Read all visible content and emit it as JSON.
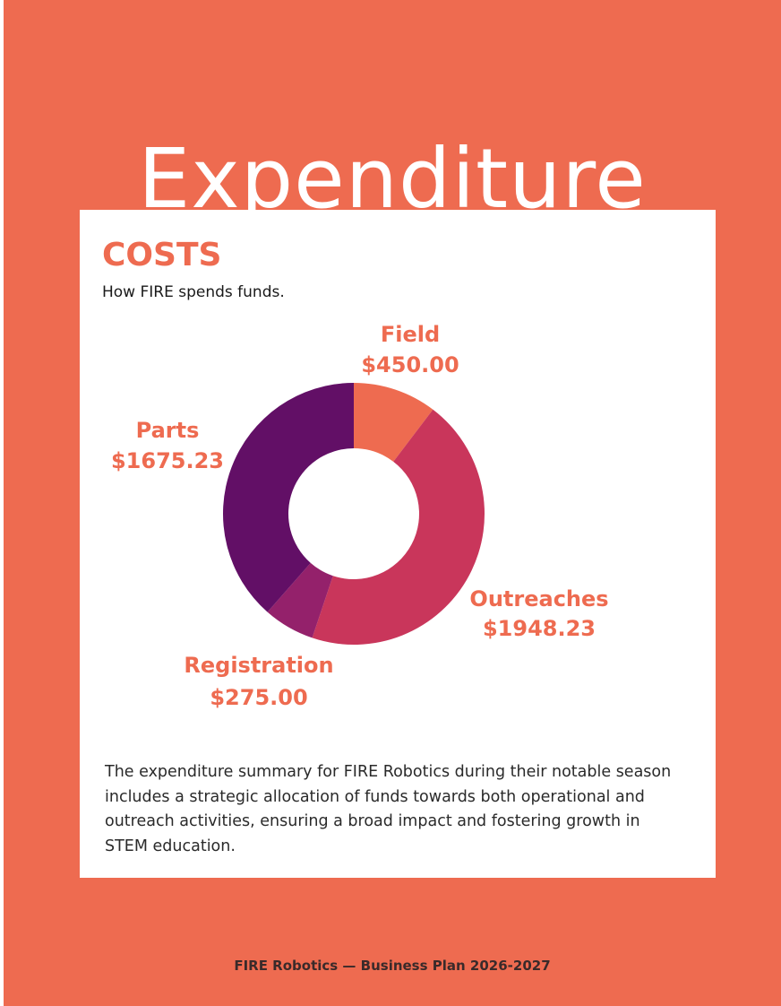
{
  "page": {
    "title": "Expenditure",
    "background_color": "#ee6b50",
    "footer": "FIRE Robotics — Business Plan 2026-2027"
  },
  "card": {
    "heading": "COSTS",
    "subtitle": "How FIRE spends funds.",
    "summary": "The expenditure summary for FIRE Robotics during their notable season includes a strategic allocation of funds towards both operational and outreach activities, ensuring a broad impact and fostering growth in STEM education."
  },
  "chart_data": {
    "type": "pie",
    "style": "donut",
    "categories": [
      "Field",
      "Outreaches",
      "Registration",
      "Parts"
    ],
    "values": [
      450.0,
      1948.23,
      275.0,
      1675.23
    ],
    "value_labels": [
      "$450.00",
      "$1948.23",
      "$275.00",
      "$1675.23"
    ],
    "colors": [
      "#ee6b50",
      "#c9365b",
      "#94216b",
      "#620f66"
    ],
    "start_angle": "12 o'clock",
    "direction": "clockwise",
    "legend": "none",
    "title": "COSTS",
    "subtitle": "How FIRE spends funds."
  }
}
